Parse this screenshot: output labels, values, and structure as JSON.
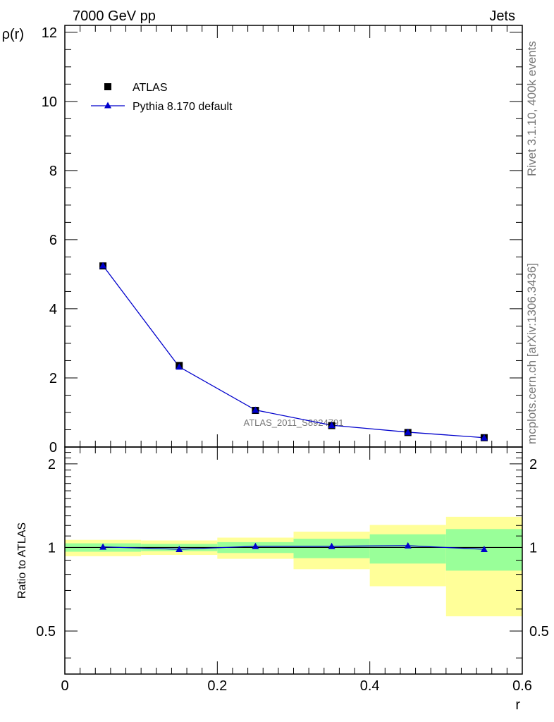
{
  "header": {
    "energy_label": "7000 GeV pp",
    "process_label": "Jets"
  },
  "side_labels": {
    "rivet": "Rivet 3.1.10,  400k events",
    "mcplots": "mcplots.cern.ch [arXiv:1306.3436]"
  },
  "watermark": "ATLAS_2011_S8924791",
  "colors": {
    "data": "#000000",
    "mc": "#0000cc",
    "band_inner": "#99ff99",
    "band_outer": "#ffff99"
  },
  "chart_data": [
    {
      "type": "scatter",
      "panel": "main",
      "ylabel": "ρ(r)",
      "xlim": [
        0,
        0.6
      ],
      "ylim": [
        0,
        12.2
      ],
      "yticks": [
        0,
        2,
        4,
        6,
        8,
        10,
        12
      ],
      "legend_position": "top-left",
      "series": [
        {
          "name": "ATLAS",
          "marker": "square",
          "x": [
            0.05,
            0.15,
            0.25,
            0.35,
            0.45,
            0.55
          ],
          "values": [
            5.24,
            2.36,
            1.06,
            0.62,
            0.42,
            0.27
          ]
        },
        {
          "name": "Pythia 8.170 default",
          "marker": "triangle",
          "x": [
            0.05,
            0.15,
            0.25,
            0.35,
            0.45,
            0.55
          ],
          "values": [
            5.25,
            2.32,
            1.07,
            0.63,
            0.43,
            0.27
          ]
        }
      ]
    },
    {
      "type": "line",
      "panel": "ratio",
      "xlabel": "r",
      "ylabel": "Ratio to ATLAS",
      "xlim": [
        0,
        0.6
      ],
      "ylim": [
        0.35,
        2.3
      ],
      "xticks": [
        0,
        0.2,
        0.4,
        0.6
      ],
      "yticks": [
        0.5,
        1,
        2
      ],
      "bands": {
        "x_edges": [
          0,
          0.1,
          0.2,
          0.3,
          0.4,
          0.5,
          0.6
        ],
        "inner_low": [
          0.965,
          0.97,
          0.955,
          0.915,
          0.875,
          0.825
        ],
        "inner_high": [
          1.035,
          1.03,
          1.045,
          1.075,
          1.115,
          1.165
        ],
        "outer_low": [
          0.93,
          0.94,
          0.91,
          0.835,
          0.725,
          0.565
        ],
        "outer_high": [
          1.065,
          1.06,
          1.085,
          1.14,
          1.205,
          1.29
        ]
      },
      "series": [
        {
          "name": "Pythia 8.170 default",
          "x": [
            0.05,
            0.15,
            0.25,
            0.35,
            0.45,
            0.55
          ],
          "values": [
            1.005,
            0.985,
            1.01,
            1.01,
            1.015,
            0.985
          ]
        }
      ]
    }
  ]
}
